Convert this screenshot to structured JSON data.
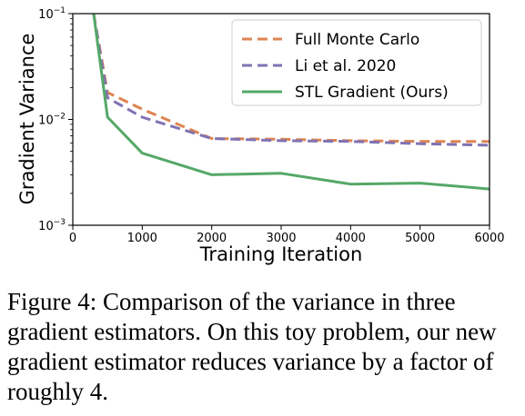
{
  "chart_data": {
    "type": "line",
    "xlabel": "Training Iteration",
    "ylabel": "Gradient Variance",
    "xlim": [
      0,
      6000
    ],
    "ylim": [
      0.001,
      0.1
    ],
    "yscale": "log",
    "x_ticks": [
      "0",
      "1000",
      "2000",
      "3000",
      "4000",
      "5000",
      "6000"
    ],
    "y_ticks": [
      {
        "base": "10",
        "exp": "−1"
      },
      {
        "base": "10",
        "exp": "−2"
      },
      {
        "base": "10",
        "exp": "−3"
      }
    ],
    "legend_position": "top-right",
    "grid": false,
    "series": [
      {
        "name": "Full Monte Carlo",
        "color": "#dd8452",
        "style": "dashed",
        "points": [
          [
            300,
            0.1
          ],
          [
            500,
            0.018
          ],
          [
            1000,
            0.0125
          ],
          [
            2000,
            0.0066
          ],
          [
            3000,
            0.0065
          ],
          [
            4000,
            0.0063
          ],
          [
            5000,
            0.0062
          ],
          [
            6000,
            0.0062
          ]
        ]
      },
      {
        "name": "Li et al. 2020",
        "color": "#8172b3",
        "style": "dashed",
        "points": [
          [
            300,
            0.1
          ],
          [
            500,
            0.016
          ],
          [
            1000,
            0.0105
          ],
          [
            2000,
            0.0066
          ],
          [
            3000,
            0.0063
          ],
          [
            4000,
            0.0062
          ],
          [
            5000,
            0.0059
          ],
          [
            6000,
            0.0057
          ]
        ]
      },
      {
        "name": "STL Gradient (Ours)",
        "color": "#55a868",
        "style": "solid",
        "points": [
          [
            300,
            0.1
          ],
          [
            500,
            0.0105
          ],
          [
            1000,
            0.0048
          ],
          [
            2000,
            0.003
          ],
          [
            3000,
            0.0031
          ],
          [
            4000,
            0.00245
          ],
          [
            5000,
            0.0025
          ],
          [
            6000,
            0.0022
          ]
        ]
      }
    ]
  },
  "caption": "Figure 4: Comparison of the variance in three gradient estimators. On this toy problem, our new gradient estimator reduces variance by a factor of roughly 4."
}
